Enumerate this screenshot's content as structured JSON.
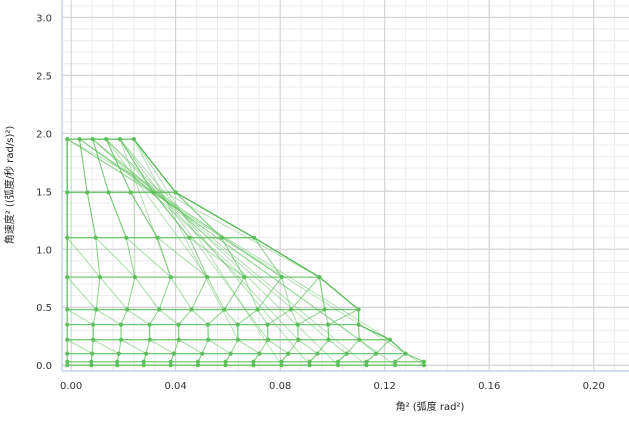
{
  "chart_data": {
    "type": "line",
    "title": "",
    "xlabel": "角² (弧度 rad²)",
    "ylabel": "角速度² ((弧度/秒 rad/s)²)",
    "xlim": [
      -0.0035,
      0.2135
    ],
    "ylim": [
      -0.05,
      3.15
    ],
    "x_ticks": [
      "0.00",
      "0.04",
      "0.08",
      "0.12",
      "0.16",
      "0.20"
    ],
    "y_ticks": [
      "0.0",
      "0.5",
      "1.0",
      "1.5",
      "2.0",
      "2.5",
      "3.0"
    ],
    "grid": true,
    "minor_grid": true,
    "legend": "none",
    "colors": {
      "series": "#5cbf5c",
      "grid_major": "#cfcfcf",
      "grid_minor": "#ececec",
      "axis": "#c5d4ee"
    },
    "y_levels": [
      0.0,
      0.03,
      0.1,
      0.22,
      0.35,
      0.48,
      0.76,
      1.1,
      1.49,
      1.95
    ],
    "x_end_by_level": [
      0.135,
      0.135,
      0.128,
      0.122,
      0.11,
      0.11,
      0.095,
      0.07,
      0.04,
      0.024
    ],
    "point_counts": [
      14,
      14,
      13,
      12,
      11,
      10,
      8,
      7,
      6,
      6
    ]
  }
}
